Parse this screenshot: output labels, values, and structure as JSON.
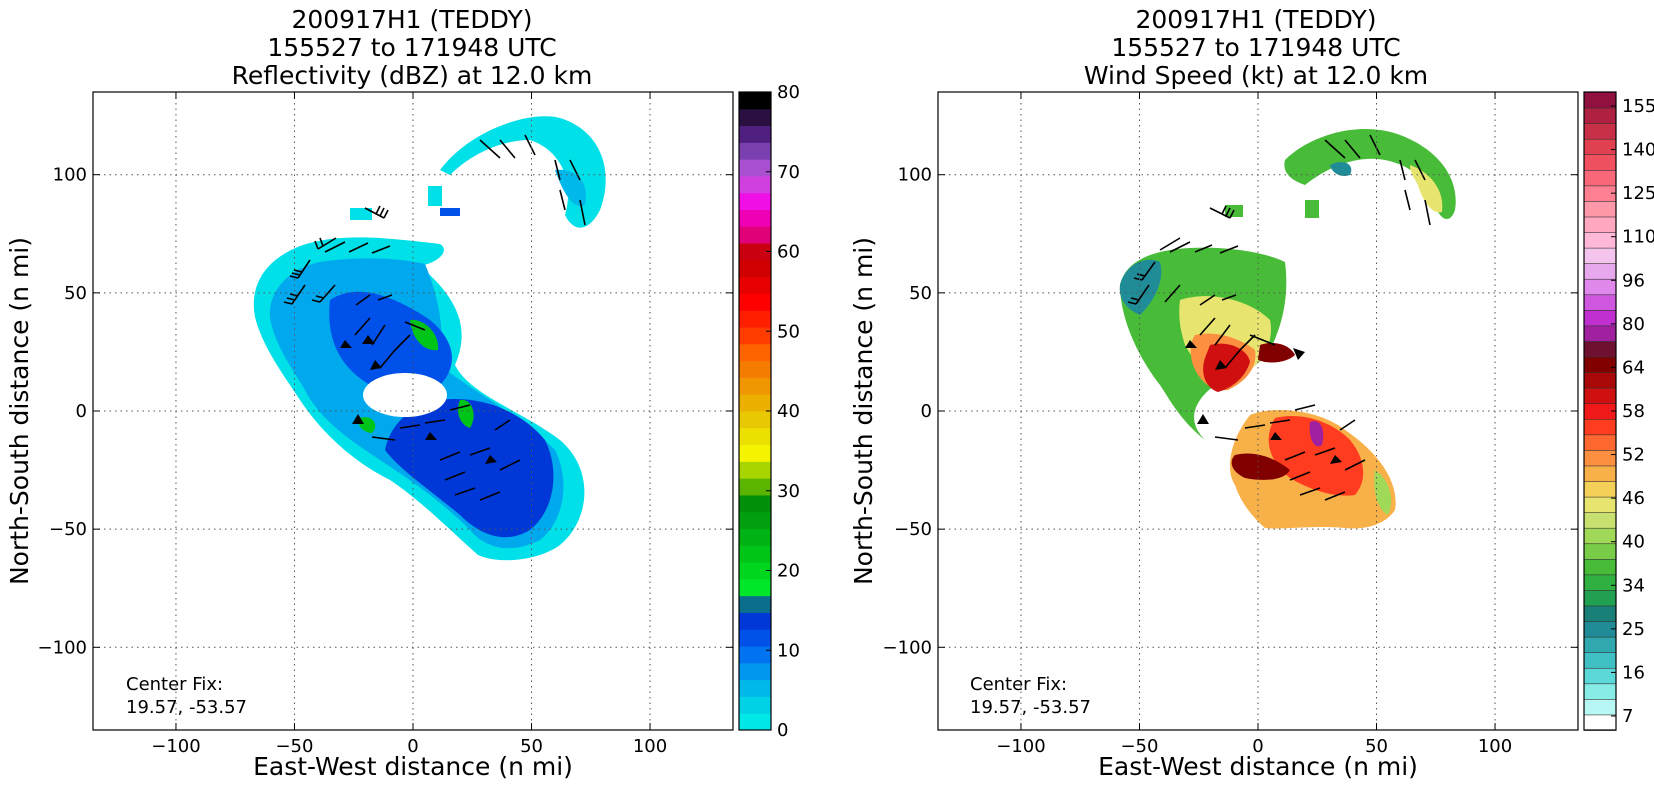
{
  "panels": [
    {
      "title_lines": [
        "200917H1 (TEDDY)",
        "155527 to 171948 UTC",
        "Reflectivity (dBZ) at 12.0 km"
      ],
      "xlabel": "East-West distance (n mi)",
      "ylabel": "North-South distance (n mi)",
      "center_fix_label": "Center Fix:",
      "center_fix_value": "19.57, -53.57",
      "colorbar_ticks": [
        "0",
        "10",
        "20",
        "30",
        "40",
        "50",
        "60",
        "70",
        "80"
      ],
      "colorbar_colors": [
        "#00e8e8",
        "#00d2e6",
        "#00b8ea",
        "#0096ee",
        "#0074f0",
        "#0050ea",
        "#0038d8",
        "#0a6e8c",
        "#00e628",
        "#00d61e",
        "#00c418",
        "#00b214",
        "#00a010",
        "#00900c",
        "#5ab400",
        "#a8d400",
        "#f4f400",
        "#ece000",
        "#e8c800",
        "#ecb000",
        "#f09600",
        "#f47c00",
        "#ff6400",
        "#ff3c00",
        "#ff1e00",
        "#ff0000",
        "#e60000",
        "#d00000",
        "#c80010",
        "#e00078",
        "#f000b4",
        "#f010e6",
        "#d040e0",
        "#a850d0",
        "#7a40b0",
        "#502080",
        "#2a1040",
        "#000000"
      ],
      "cb_min": 0,
      "cb_max": 80
    },
    {
      "title_lines": [
        "200917H1 (TEDDY)",
        "155527 to 171948 UTC",
        "Wind Speed (kt) at 12.0 km"
      ],
      "xlabel": "East-West distance (n mi)",
      "ylabel": "North-South distance (n mi)",
      "center_fix_label": "Center Fix:",
      "center_fix_value": "19.57, -53.57",
      "colorbar_ticks": [
        "7",
        "16",
        "25",
        "34",
        "40",
        "46",
        "52",
        "58",
        "64",
        "80",
        "96",
        "110",
        "125",
        "140",
        "155"
      ],
      "colorbar_colors": [
        "#ffffff",
        "#b8f8f4",
        "#88ece6",
        "#5cd8d8",
        "#40c0c4",
        "#30a8b0",
        "#208c98",
        "#188078",
        "#20a050",
        "#30b040",
        "#48bc38",
        "#78cc48",
        "#a0d858",
        "#c8e070",
        "#e8e470",
        "#f4d058",
        "#f8b048",
        "#fc9040",
        "#ff6830",
        "#ff3c20",
        "#f01818",
        "#d01010",
        "#a80808",
        "#800000",
        "#701030",
        "#a020a0",
        "#c030d0",
        "#d058e0",
        "#e088ec",
        "#e8a8ee",
        "#f4c4ec",
        "#ffb8d8",
        "#ffa8c0",
        "#ff98a8",
        "#ff8090",
        "#f86878",
        "#f05060",
        "#e04050",
        "#c83048",
        "#b02040",
        "#901040"
      ],
      "cb_min": 7,
      "cb_max": 160
    }
  ],
  "chart_data": [
    {
      "type": "heatmap",
      "title": "200917H1 (TEDDY) 155527 to 171948 UTC Reflectivity (dBZ) at 12.0 km",
      "xlabel": "East-West distance (n mi)",
      "ylabel": "North-South distance (n mi)",
      "xlim": [
        -135,
        135
      ],
      "ylim": [
        -135,
        135
      ],
      "x_ticks": [
        -100,
        -50,
        0,
        50,
        100
      ],
      "y_ticks": [
        -100,
        -50,
        0,
        50,
        100
      ],
      "grid": true,
      "colorbar": {
        "label": "dBZ",
        "ticks": [
          0,
          10,
          20,
          30,
          40,
          50,
          60,
          70,
          80
        ]
      },
      "center_fix": [
        19.57,
        -53.57
      ],
      "annotations": [
        "Center Fix:",
        "19.57, -53.57"
      ]
    },
    {
      "type": "heatmap",
      "title": "200917H1 (TEDDY) 155527 to 171948 UTC Wind Speed (kt) at 12.0 km",
      "xlabel": "East-West distance (n mi)",
      "ylabel": "North-South distance (n mi)",
      "xlim": [
        -135,
        135
      ],
      "ylim": [
        -135,
        135
      ],
      "x_ticks": [
        -100,
        -50,
        0,
        50,
        100
      ],
      "y_ticks": [
        -100,
        -50,
        0,
        50,
        100
      ],
      "grid": true,
      "colorbar": {
        "label": "kt",
        "ticks": [
          7,
          16,
          25,
          34,
          40,
          46,
          52,
          58,
          64,
          80,
          96,
          110,
          125,
          140,
          155
        ]
      },
      "center_fix": [
        19.57,
        -53.57
      ],
      "annotations": [
        "Center Fix:",
        "19.57, -53.57"
      ]
    }
  ]
}
